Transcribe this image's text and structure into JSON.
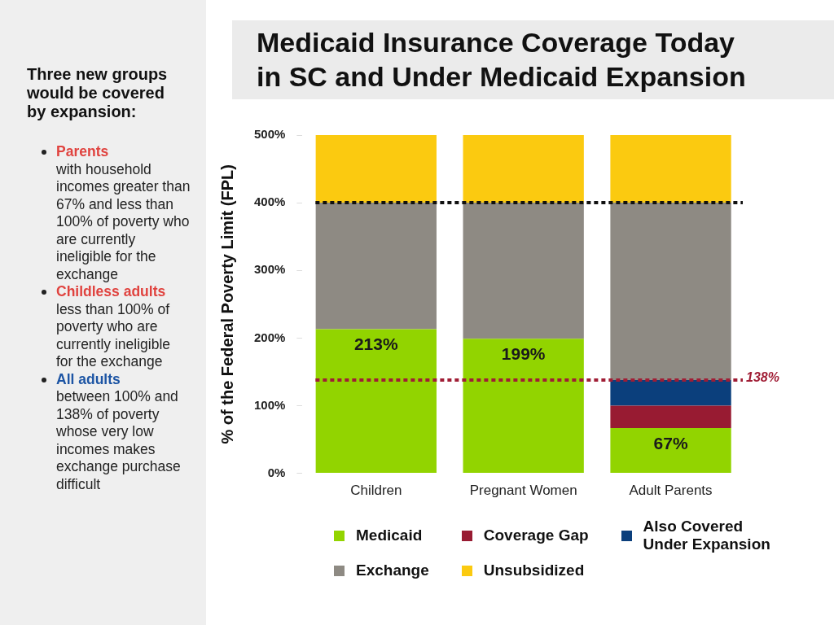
{
  "chart_data": {
    "type": "bar",
    "title": "Medicaid Insurance Coverage Today in SC and Under Medicaid Expansion",
    "ylabel": "% of the Federal Poverty Limit (FPL)",
    "categories": [
      "Children",
      "Pregnant Women",
      "Adult Parents"
    ],
    "stacked": true,
    "series": [
      {
        "name": "Medicaid",
        "color": "#92d400",
        "values": [
          213,
          199,
          67
        ],
        "value_labels": [
          "213%",
          "199%",
          "67%"
        ]
      },
      {
        "name": "Coverage Gap",
        "color": "#981b32",
        "values": [
          null,
          null,
          33
        ]
      },
      {
        "name": "Also Covered Under Expansion",
        "color": "#0b3f7c",
        "values": [
          null,
          null,
          38
        ]
      },
      {
        "name": "Exchange",
        "color": "#8e8a83",
        "values": [
          187,
          201,
          262
        ]
      },
      {
        "name": "Unsubsidized",
        "color": "#fbca10",
        "values": [
          100,
          100,
          100
        ]
      }
    ],
    "ylim": [
      0,
      500
    ],
    "yticks": [
      {
        "value": 0,
        "label": "0%"
      },
      {
        "value": 100,
        "label": "100%"
      },
      {
        "value": 200,
        "label": "200%"
      },
      {
        "value": 300,
        "label": "300%"
      },
      {
        "value": 400,
        "label": "400%"
      },
      {
        "value": 500,
        "label": "500%"
      }
    ],
    "ref_lines": [
      {
        "axis": "y",
        "value": 400,
        "color": "#111111",
        "line_style": "dotted"
      },
      {
        "axis": "y",
        "value": 138,
        "label": "138%",
        "color": "#a01d35",
        "line_style": "dotted"
      }
    ],
    "grid": false,
    "legend": "bottom",
    "annotations": [
      "Three new groups would be covered by expansion:",
      "Parents",
      "with household incomes greater than 67% and less than 100% of poverty who are currently ineligible for the exchange",
      "Childless adults",
      "less than 100% of poverty who are currently ineligible for the exchange",
      "All adults",
      "between 100% and 138% of poverty whose very low incomes makes exchange purchase difficult"
    ]
  }
}
